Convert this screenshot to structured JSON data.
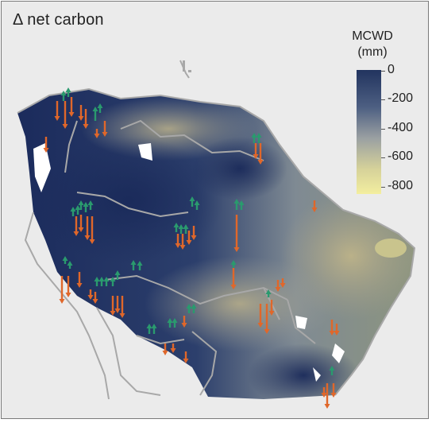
{
  "title": "Δ net carbon",
  "legend": {
    "title_line1": "MCWD",
    "title_line2": "(mm)",
    "ticks": [
      "0",
      "-200",
      "-400",
      "-600",
      "-800"
    ],
    "colors": {
      "wet": "#16275a",
      "mid": "#8a93a0",
      "dry": "#f3ec9a"
    }
  },
  "arrow_colors": {
    "gain": "#2a9a6e",
    "loss": "#e0672a"
  }
}
